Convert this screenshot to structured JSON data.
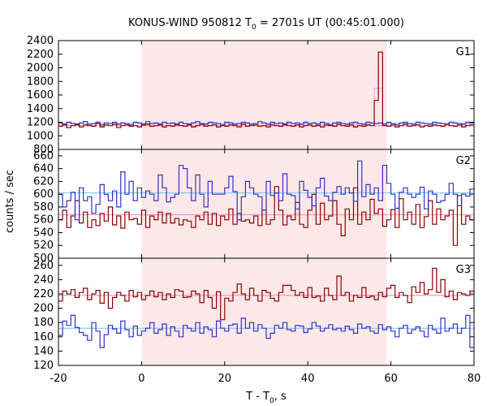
{
  "chart_data": {
    "type": "line",
    "title_prefix": "KONUS-WIND 950812 T",
    "title_sub": "0",
    "title_suffix": " = 2701s UT (00:45:01.000)",
    "xlabel_prefix": "T - T",
    "xlabel_sub": "0",
    "xlabel_suffix": ", s",
    "ylabel": "counts / sec",
    "xlim": [
      -20,
      80
    ],
    "x_ticks": [
      -20,
      0,
      20,
      40,
      60,
      80
    ],
    "highlight_interval": [
      0,
      59
    ],
    "colors": {
      "highlight": "#fde8e8",
      "highlight_edge": "#f4a6a6",
      "dark_red": "#8b0000",
      "blue": "#3232c8",
      "pink": "#ff80c0",
      "light_blue": "#6ec6ef"
    },
    "step_seconds": 1,
    "panels": [
      {
        "label": "G1",
        "ylim": [
          800,
          2400
        ],
        "y_ticks": [
          1000,
          1200,
          1400,
          1600,
          1800,
          2000,
          2200,
          2400
        ],
        "y_tick_labels": [
          "1000",
          "1200",
          "1400",
          "1600",
          "1800",
          "2000",
          "2200",
          "2400"
        ],
        "bottom_tick_label": "800",
        "bg_red": 1150,
        "bg_blue": 1180,
        "red": [
          1140,
          1160,
          1120,
          1150,
          1170,
          1130,
          1160,
          1150,
          1140,
          1180,
          1130,
          1160,
          1150,
          1170,
          1120,
          1150,
          1160,
          1140,
          1150,
          1130,
          1160,
          1170,
          1140,
          1150,
          1160,
          1130,
          1150,
          1140,
          1170,
          1150,
          1140,
          1160,
          1130,
          1150,
          1170,
          1140,
          1150,
          1160,
          1130,
          1150,
          1140,
          1160,
          1150,
          1130,
          1170,
          1140,
          1150,
          1160,
          1140,
          1150,
          1130,
          1160,
          1150,
          1140,
          1170,
          1150,
          1140,
          1160,
          1130,
          1150,
          1160,
          1140,
          1150,
          1130,
          1160,
          1150,
          1140,
          1170,
          1150,
          1140,
          1160,
          1130,
          1150,
          1140,
          1160,
          1150,
          1520,
          2230,
          1150,
          1140,
          1160,
          1130,
          1150,
          1170,
          1140,
          1150,
          1160,
          1130,
          1150,
          1140,
          1160,
          1150,
          1140,
          1170,
          1150,
          1140,
          1160,
          1130,
          1150,
          1160
        ],
        "blue": [
          1190,
          1170,
          1200,
          1180,
          1160,
          1190,
          1210,
          1170,
          1180,
          1200,
          1160,
          1190,
          1180,
          1200,
          1170,
          1190,
          1180,
          1160,
          1200,
          1190,
          1170,
          1210,
          1180,
          1190,
          1170,
          1200,
          1180,
          1190,
          1160,
          1200,
          1180,
          1170,
          1190,
          1210,
          1180,
          1170,
          1200,
          1190,
          1180,
          1160,
          1200,
          1190,
          1170,
          1180,
          1200,
          1190,
          1170,
          1180,
          1210,
          1190,
          1170,
          1200,
          1180,
          1190,
          1160,
          1200,
          1180,
          1190,
          1170,
          1200,
          1180,
          1190,
          1170,
          1200,
          1180,
          1160,
          1190,
          1200,
          1180,
          1170,
          1190,
          1200,
          1180,
          1170,
          1200,
          1190,
          1180,
          1190,
          1170,
          1200,
          1180,
          1160,
          1190,
          1200,
          1180,
          1170,
          1200,
          1190,
          1180,
          1170,
          1200,
          1190,
          1180,
          1170,
          1200,
          1190,
          1180,
          1170,
          1200,
          1190
        ]
      },
      {
        "label": "G2",
        "ylim": [
          500,
          670
        ],
        "y_ticks": [
          520,
          540,
          560,
          580,
          600,
          620,
          640,
          660
        ],
        "y_tick_labels": [
          "520",
          "540",
          "560",
          "580",
          "600",
          "620",
          "640",
          "660"
        ],
        "bottom_tick_label": "500",
        "bg_red": 568,
        "bg_blue": 602,
        "red": [
          560,
          575,
          548,
          566,
          590,
          555,
          572,
          548,
          560,
          551,
          570,
          558,
          580,
          552,
          566,
          547,
          572,
          560,
          562,
          553,
          575,
          548,
          566,
          560,
          572,
          555,
          570,
          555,
          562,
          552,
          560,
          558,
          548,
          566,
          560,
          572,
          553,
          570,
          551,
          566,
          560,
          577,
          553,
          570,
          558,
          560,
          555,
          566,
          551,
          575,
          553,
          560,
          612,
          575,
          552,
          566,
          560,
          587,
          553,
          548,
          575,
          600,
          553,
          586,
          560,
          566,
          590,
          553,
          535,
          577,
          560,
          610,
          553,
          572,
          560,
          592,
          570,
          577,
          550,
          560,
          576,
          548,
          593,
          560,
          572,
          553,
          584,
          548,
          565,
          590,
          553,
          577,
          560,
          566,
          575,
          520,
          598,
          553,
          566,
          560
        ],
        "blue": [
          600,
          580,
          590,
          603,
          560,
          610,
          590,
          596,
          570,
          584,
          615,
          600,
          590,
          605,
          580,
          635,
          600,
          620,
          590,
          610,
          595,
          605,
          600,
          590,
          630,
          610,
          588,
          595,
          600,
          645,
          640,
          610,
          590,
          630,
          600,
          580,
          620,
          600,
          600,
          600,
          610,
          628,
          604,
          560,
          596,
          620,
          610,
          600,
          596,
          575,
          620,
          598,
          602,
          590,
          632,
          600,
          598,
          577,
          620,
          606,
          595,
          582,
          610,
          625,
          597,
          590,
          603,
          612,
          600,
          610,
          602,
          589,
          652,
          596,
          615,
          600,
          610,
          590,
          645,
          617,
          600,
          578,
          603,
          610,
          600,
          595,
          600,
          611,
          577,
          605,
          600,
          587,
          590,
          600,
          617,
          600,
          582,
          600,
          597,
          608
        ]
      },
      {
        "label": "G3",
        "ylim": [
          120,
          270
        ],
        "y_ticks": [
          140,
          160,
          180,
          200,
          220,
          240,
          260
        ],
        "y_tick_labels": [
          "140",
          "160",
          "180",
          "200",
          "220",
          "240",
          "260"
        ],
        "bottom_tick_label": "120",
        "bg_red": 218,
        "bg_blue": 172,
        "red": [
          210,
          224,
          220,
          226,
          215,
          222,
          228,
          212,
          220,
          225,
          207,
          222,
          200,
          215,
          222,
          218,
          210,
          225,
          216,
          222,
          212,
          218,
          224,
          216,
          222,
          212,
          220,
          215,
          226,
          224,
          215,
          216,
          224,
          220,
          208,
          225,
          215,
          200,
          223,
          184,
          214,
          210,
          222,
          234,
          220,
          212,
          228,
          218,
          210,
          225,
          222,
          214,
          210,
          222,
          232,
          232,
          225,
          218,
          222,
          215,
          229,
          215,
          217,
          210,
          228,
          218,
          212,
          245,
          218,
          222,
          210,
          218,
          215,
          229,
          215,
          217,
          212,
          222,
          216,
          228,
          232,
          215,
          222,
          218,
          208,
          230,
          222,
          236,
          220,
          226,
          256,
          222,
          240,
          216,
          224,
          212,
          222,
          220,
          218,
          224
        ],
        "blue": [
          162,
          182,
          176,
          190,
          173,
          166,
          162,
          155,
          180,
          168,
          145,
          163,
          176,
          171,
          165,
          182,
          170,
          160,
          175,
          162,
          168,
          172,
          180,
          165,
          170,
          178,
          162,
          174,
          168,
          160,
          176,
          172,
          168,
          180,
          165,
          174,
          170,
          160,
          182,
          172,
          168,
          176,
          178,
          165,
          186,
          172,
          180,
          168,
          177,
          172,
          158,
          165,
          176,
          172,
          180,
          170,
          168,
          176,
          175,
          166,
          171,
          180,
          175,
          168,
          172,
          177,
          170,
          172,
          168,
          175,
          170,
          165,
          178,
          172,
          174,
          168,
          165,
          177,
          170,
          174,
          168,
          160,
          172,
          176,
          165,
          170,
          174,
          168,
          160,
          176,
          170,
          165,
          186,
          168,
          172,
          178,
          165,
          172,
          190,
          145
        ]
      }
    ]
  }
}
